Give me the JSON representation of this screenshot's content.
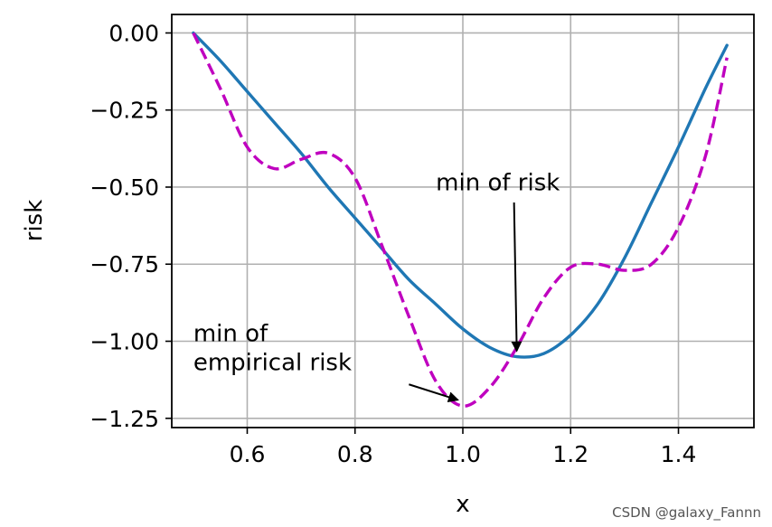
{
  "chart_data": {
    "type": "line",
    "title": "",
    "xlabel": "x",
    "ylabel": "risk",
    "xlim": [
      0.46,
      1.54
    ],
    "ylim": [
      -1.28,
      0.06
    ],
    "grid": true,
    "x_ticks": [
      0.6,
      0.8,
      1.0,
      1.2,
      1.4
    ],
    "x_tick_labels": [
      "0.6",
      "0.8",
      "1.0",
      "1.2",
      "1.4"
    ],
    "y_ticks": [
      0.0,
      -0.25,
      -0.5,
      -0.75,
      -1.0,
      -1.25
    ],
    "y_tick_labels": [
      "0.00",
      "−0.25",
      "−0.50",
      "−0.75",
      "−1.00",
      "−1.25"
    ],
    "series": [
      {
        "color": "#1f77b4",
        "style": "solid",
        "x": [
          0.5,
          0.55,
          0.6,
          0.65,
          0.7,
          0.75,
          0.8,
          0.85,
          0.9,
          0.95,
          1.0,
          1.05,
          1.1,
          1.15,
          1.2,
          1.25,
          1.3,
          1.35,
          1.4,
          1.45,
          1.49
        ],
        "y": [
          0.0,
          -0.09,
          -0.19,
          -0.29,
          -0.39,
          -0.5,
          -0.6,
          -0.7,
          -0.8,
          -0.88,
          -0.96,
          -1.02,
          -1.05,
          -1.04,
          -0.98,
          -0.88,
          -0.73,
          -0.55,
          -0.37,
          -0.18,
          -0.04
        ]
      },
      {
        "color": "#bf00bf",
        "style": "dashed",
        "x": [
          0.5,
          0.55,
          0.6,
          0.65,
          0.7,
          0.75,
          0.8,
          0.85,
          0.9,
          0.95,
          1.0,
          1.05,
          1.1,
          1.15,
          1.2,
          1.25,
          1.3,
          1.35,
          1.4,
          1.45,
          1.49
        ],
        "y": [
          0.0,
          -0.18,
          -0.37,
          -0.44,
          -0.41,
          -0.39,
          -0.47,
          -0.69,
          -0.92,
          -1.13,
          -1.21,
          -1.15,
          -1.02,
          -0.86,
          -0.76,
          -0.75,
          -0.77,
          -0.75,
          -0.63,
          -0.4,
          -0.08
        ]
      }
    ],
    "annotations": [
      {
        "lines": [
          "min of risk"
        ],
        "text_x": 0.95,
        "text_y": -0.51,
        "arrow_from": [
          1.095,
          -0.55
        ],
        "arrow_to": [
          1.1,
          -1.03
        ]
      },
      {
        "lines": [
          "min of",
          "empirical risk"
        ],
        "text_x": 0.5,
        "text_y": -1.0,
        "arrow_from": [
          0.9,
          -1.14
        ],
        "arrow_to": [
          0.99,
          -1.19
        ]
      }
    ]
  },
  "watermark": "CSDN @galaxy_Fannn"
}
